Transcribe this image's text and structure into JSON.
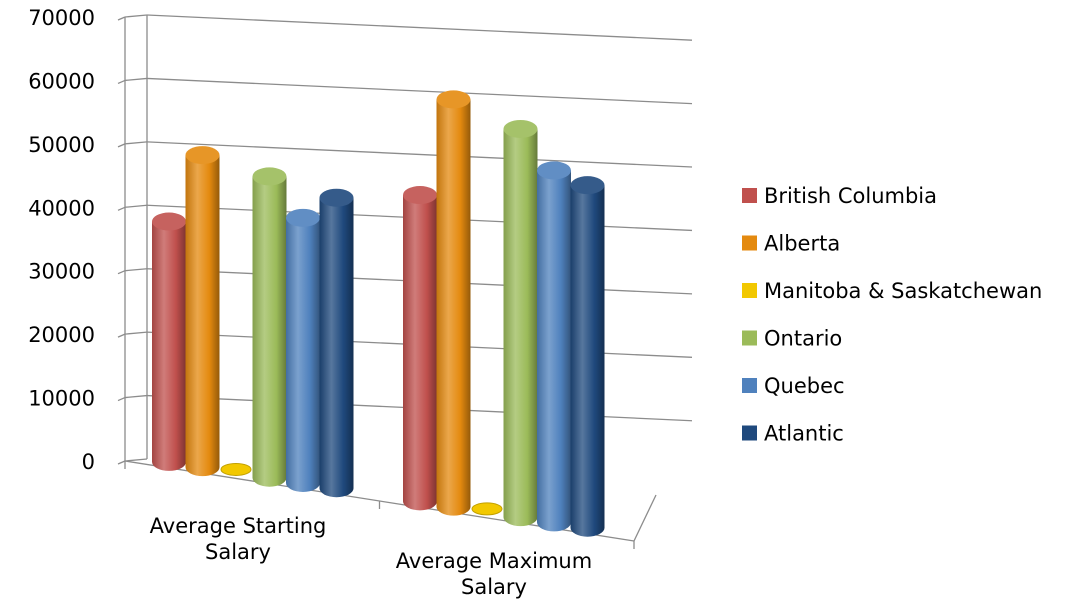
{
  "chart_data": {
    "type": "bar",
    "title": "",
    "xlabel": "",
    "ylabel": "",
    "categories": [
      [
        "Average Starting",
        "Salary"
      ],
      [
        "Average Maximum",
        "Salary"
      ]
    ],
    "series": [
      {
        "name": "British Columbia",
        "color": "#c0504d",
        "values": [
          37900,
          48300
        ]
      },
      {
        "name": "Alberta",
        "color": "#e48a0f",
        "values": [
          49200,
          64200
        ]
      },
      {
        "name": "Manitoba & Saskatchewan",
        "color": "#f2c800",
        "values": [
          0,
          0
        ]
      },
      {
        "name": "Ontario",
        "color": "#9bbb59",
        "values": [
          47500,
          61200
        ]
      },
      {
        "name": "Quebec",
        "color": "#4f81bd",
        "values": [
          41800,
          55500
        ]
      },
      {
        "name": "Atlantic",
        "color": "#1f497d",
        "values": [
          45800,
          54000
        ]
      }
    ],
    "ylim": [
      0,
      70000
    ],
    "yticks": [
      "0",
      "10000",
      "20000",
      "30000",
      "40000",
      "50000",
      "60000",
      "70000"
    ],
    "grid": true,
    "legend": "right",
    "style": "3d-cylinder"
  }
}
